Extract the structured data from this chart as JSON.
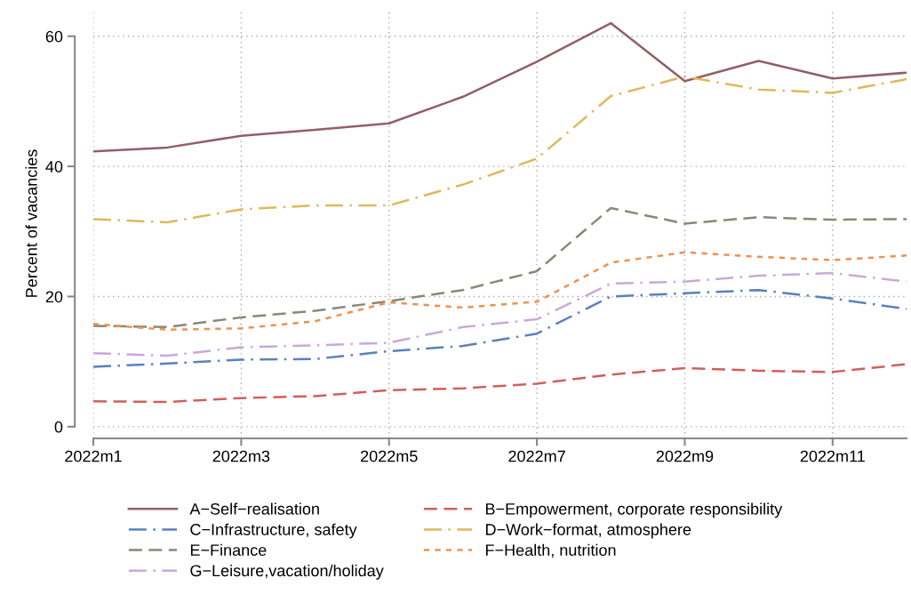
{
  "chart_data": {
    "type": "line",
    "ylabel": "Percent of vacancies",
    "categories": [
      "2022m1",
      null,
      "2022m3",
      null,
      "2022m5",
      null,
      "2022m7",
      null,
      "2022m9",
      null,
      "2022m11",
      null
    ],
    "ylim": [
      -1.8,
      64.2
    ],
    "yticks": [
      0,
      20,
      40,
      60
    ],
    "grid": true,
    "legend": "bottom",
    "series": [
      {
        "name": "A−Self−realisation",
        "color": "#935f66",
        "line_style": "solid",
        "values": [
          42.3,
          42.9,
          44.7,
          45.6,
          46.6,
          50.7,
          56.1,
          62.0,
          53.1,
          56.2,
          53.5,
          54.4
        ]
      },
      {
        "name": "B−Empowerment, corporate responsibility",
        "color": "#d0605a",
        "line_style": "dashed",
        "values": [
          3.9,
          3.8,
          4.4,
          4.7,
          5.6,
          5.9,
          6.6,
          8.0,
          9.0,
          8.6,
          8.4,
          9.6
        ]
      },
      {
        "name": "C−Infrastructure, safety",
        "color": "#5b80c0",
        "line_style": "dashdot",
        "values": [
          9.2,
          9.7,
          10.3,
          10.4,
          11.6,
          12.4,
          14.3,
          20.0,
          20.5,
          21.0,
          19.7,
          18.1
        ]
      },
      {
        "name": "D−Work−format, atmosphere",
        "color": "#e0b85a",
        "line_style": "dashdot",
        "values": [
          31.9,
          31.4,
          33.4,
          34.0,
          34.0,
          37.2,
          41.2,
          50.8,
          53.8,
          51.8,
          51.3,
          53.4
        ]
      },
      {
        "name": "E−Finance",
        "color": "#8a8877",
        "line_style": "dashed",
        "values": [
          15.5,
          15.3,
          16.8,
          17.8,
          19.3,
          21.0,
          23.9,
          33.6,
          31.2,
          32.2,
          31.8,
          31.9
        ]
      },
      {
        "name": "F−Health, nutrition",
        "color": "#ef9150",
        "line_style": "dotted",
        "values": [
          15.8,
          14.9,
          15.1,
          16.2,
          19.1,
          18.3,
          19.2,
          25.2,
          26.8,
          26.1,
          25.6,
          26.3
        ]
      },
      {
        "name": "G−Leisure,vacation/holiday",
        "color": "#c9a9d8",
        "line_style": "dashdot",
        "values": [
          11.3,
          10.9,
          12.2,
          12.5,
          12.9,
          15.3,
          16.5,
          22.0,
          22.3,
          23.2,
          23.6,
          22.3
        ]
      }
    ]
  }
}
